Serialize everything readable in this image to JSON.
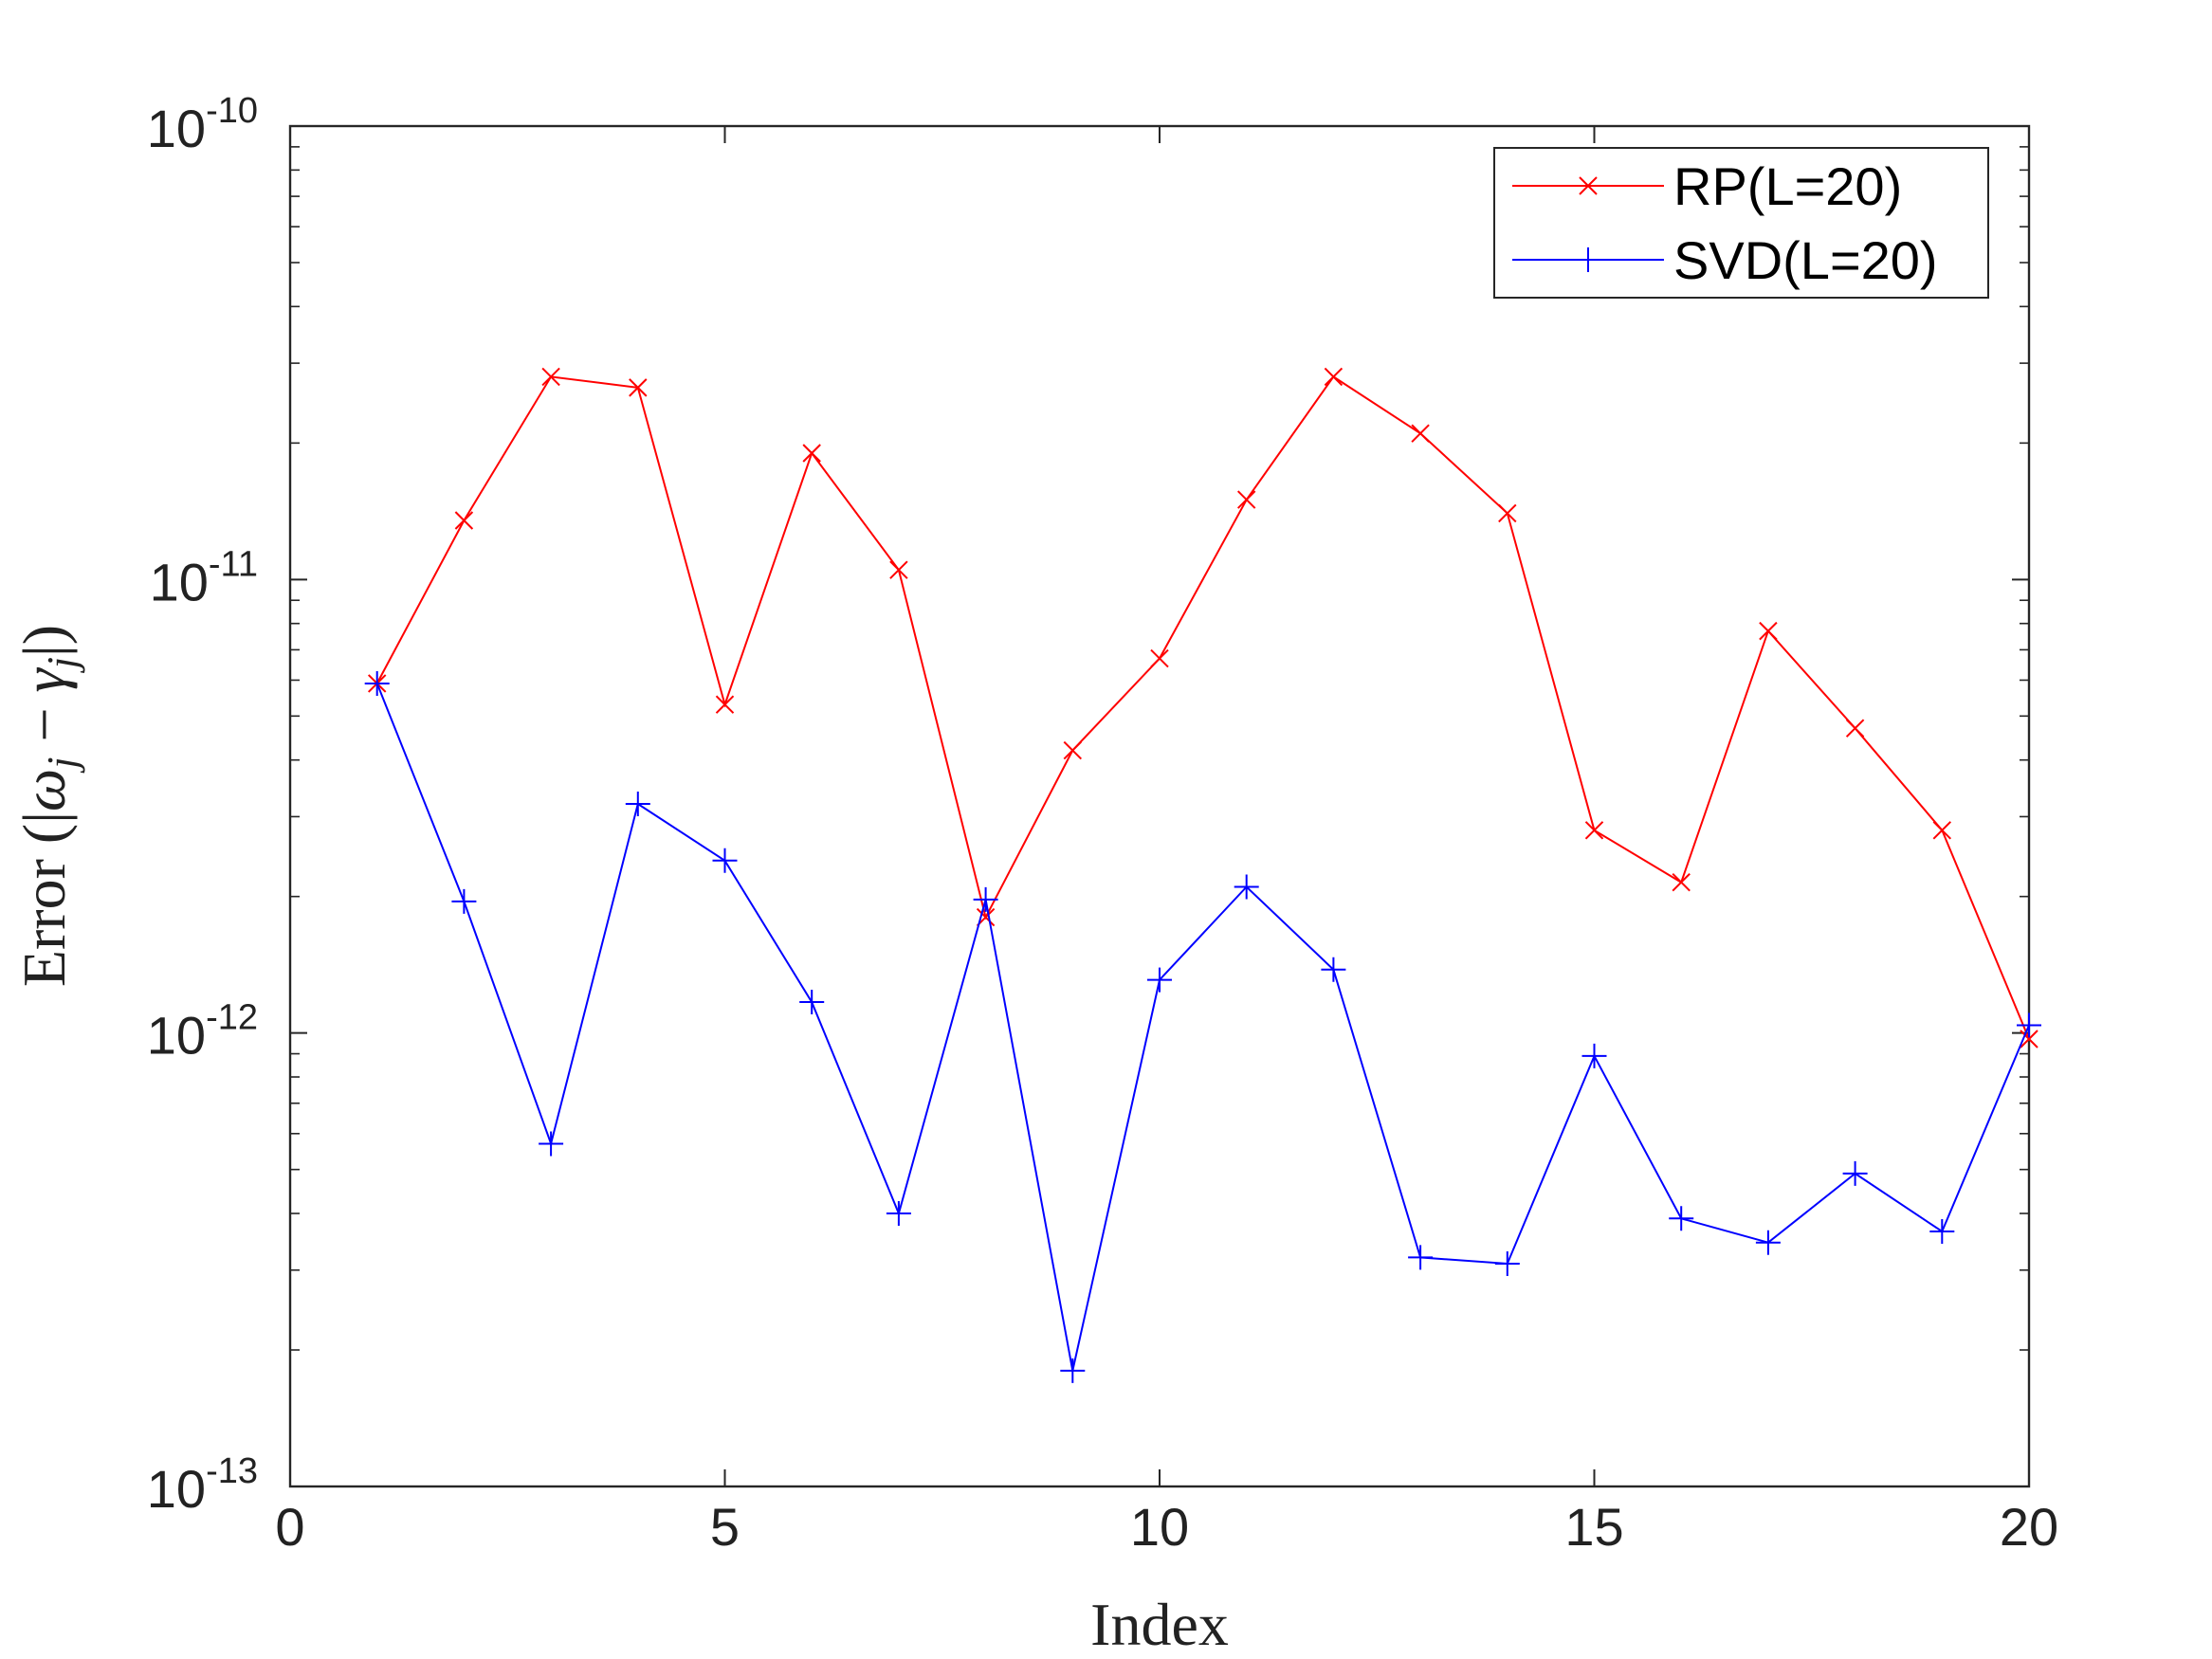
{
  "chart_data": {
    "type": "line",
    "xlabel": "Index",
    "ylabel": "Error (|ω_j − γ_j|)",
    "ylabel_parts": {
      "prefix": "Error (|",
      "omega": "ω",
      "minus": " − ",
      "gamma": "γ",
      "sub": "j",
      "suffix": "|)"
    },
    "xlim": [
      0,
      20
    ],
    "ylim": [
      1e-13,
      1e-10
    ],
    "yscale": "log",
    "xticks": [
      0,
      5,
      10,
      15,
      20
    ],
    "xtick_labels": [
      "0",
      "5",
      "10",
      "15",
      "20"
    ],
    "yticks": [
      1e-13,
      1e-12,
      1e-11,
      1e-10
    ],
    "ytick_labels": [
      {
        "base": "10",
        "exp": "-13"
      },
      {
        "base": "10",
        "exp": "-12"
      },
      {
        "base": "10",
        "exp": "-11"
      },
      {
        "base": "10",
        "exp": "-10"
      }
    ],
    "grid": false,
    "legend_position": "top-right",
    "x": [
      1,
      2,
      3,
      4,
      5,
      6,
      7,
      8,
      9,
      10,
      11,
      12,
      13,
      14,
      15,
      16,
      17,
      18,
      19,
      20
    ],
    "series": [
      {
        "name": "RP(L=20)",
        "color": "#ff0000",
        "marker": "x",
        "values": [
          5.9e-12,
          1.35e-11,
          2.8e-11,
          2.65e-11,
          5.3e-12,
          1.9e-11,
          1.05e-11,
          1.8e-12,
          4.2e-12,
          6.7e-12,
          1.5e-11,
          2.8e-11,
          2.1e-11,
          1.4e-11,
          2.8e-12,
          2.15e-12,
          7.7e-12,
          4.7e-12,
          2.8e-12,
          9.7e-13
        ]
      },
      {
        "name": "SVD(L=20)",
        "color": "#0000ff",
        "marker": "+",
        "values": [
          5.9e-12,
          1.95e-12,
          5.7e-13,
          3.2e-12,
          2.4e-12,
          1.17e-12,
          4e-13,
          1.97e-12,
          1.8e-13,
          1.31e-12,
          2.1e-12,
          1.38e-12,
          3.2e-13,
          3.1e-13,
          8.9e-13,
          3.9e-13,
          3.45e-13,
          4.9e-13,
          3.65e-13,
          1.04e-12
        ]
      }
    ]
  }
}
